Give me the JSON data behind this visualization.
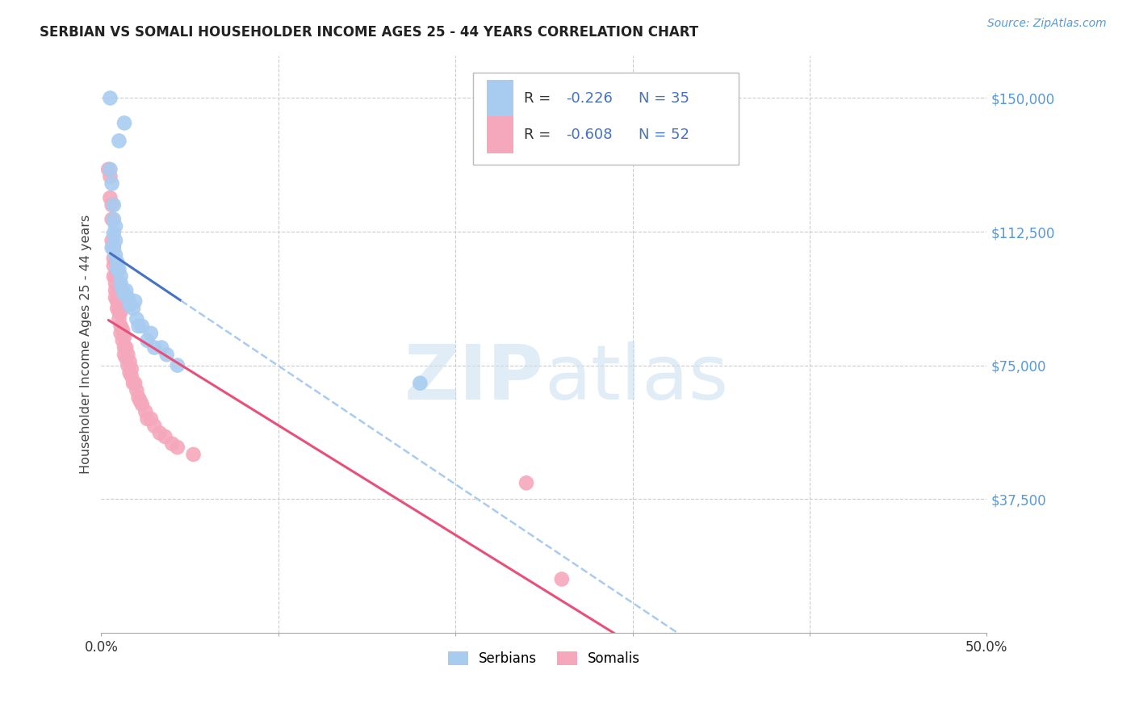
{
  "title": "SERBIAN VS SOMALI HOUSEHOLDER INCOME AGES 25 - 44 YEARS CORRELATION CHART",
  "source": "Source: ZipAtlas.com",
  "ylabel": "Householder Income Ages 25 - 44 years",
  "ytick_labels": [
    "$150,000",
    "$112,500",
    "$75,000",
    "$37,500"
  ],
  "ytick_values": [
    150000,
    112500,
    75000,
    37500
  ],
  "xlim": [
    0.0,
    0.5
  ],
  "ylim": [
    0,
    162000
  ],
  "serbian_R": -0.226,
  "serbian_N": 35,
  "somali_R": -0.608,
  "somali_N": 52,
  "serbian_color": "#A8CCF0",
  "somali_color": "#F5A8BC",
  "serbian_line_color": "#4472C4",
  "somali_line_color": "#E8507A",
  "serbian_dashed_color": "#A8CCF0",
  "watermark_zip": "ZIP",
  "watermark_atlas": "atlas",
  "serbian_x": [
    0.005,
    0.01,
    0.013,
    0.005,
    0.006,
    0.007,
    0.007,
    0.008,
    0.007,
    0.008,
    0.006,
    0.007,
    0.008,
    0.009,
    0.009,
    0.01,
    0.011,
    0.011,
    0.012,
    0.013,
    0.014,
    0.015,
    0.016,
    0.018,
    0.019,
    0.02,
    0.021,
    0.023,
    0.026,
    0.028,
    0.03,
    0.034,
    0.037,
    0.043,
    0.18
  ],
  "serbian_y": [
    150000,
    138000,
    143000,
    130000,
    126000,
    120000,
    116000,
    114000,
    112000,
    110000,
    108000,
    108000,
    106000,
    104000,
    102000,
    102000,
    100000,
    98000,
    96000,
    95000,
    96000,
    94000,
    92000,
    91000,
    93000,
    88000,
    86000,
    86000,
    82000,
    84000,
    80000,
    80000,
    78000,
    75000,
    70000
  ],
  "somali_x": [
    0.004,
    0.005,
    0.005,
    0.006,
    0.006,
    0.006,
    0.007,
    0.007,
    0.007,
    0.007,
    0.008,
    0.008,
    0.008,
    0.008,
    0.009,
    0.009,
    0.009,
    0.01,
    0.01,
    0.011,
    0.011,
    0.011,
    0.012,
    0.012,
    0.013,
    0.013,
    0.013,
    0.014,
    0.014,
    0.015,
    0.015,
    0.016,
    0.016,
    0.017,
    0.017,
    0.018,
    0.019,
    0.02,
    0.021,
    0.022,
    0.023,
    0.025,
    0.026,
    0.028,
    0.03,
    0.033,
    0.036,
    0.04,
    0.043,
    0.052,
    0.24,
    0.26
  ],
  "somali_y": [
    130000,
    128000,
    122000,
    120000,
    116000,
    110000,
    108000,
    105000,
    103000,
    100000,
    100000,
    98000,
    96000,
    94000,
    95000,
    93000,
    91000,
    90000,
    88000,
    90000,
    86000,
    84000,
    85000,
    82000,
    83000,
    80000,
    78000,
    80000,
    77000,
    78000,
    75000,
    76000,
    73000,
    74000,
    72000,
    70000,
    70000,
    68000,
    66000,
    65000,
    64000,
    62000,
    60000,
    60000,
    58000,
    56000,
    55000,
    53000,
    52000,
    50000,
    42000,
    15000
  ]
}
